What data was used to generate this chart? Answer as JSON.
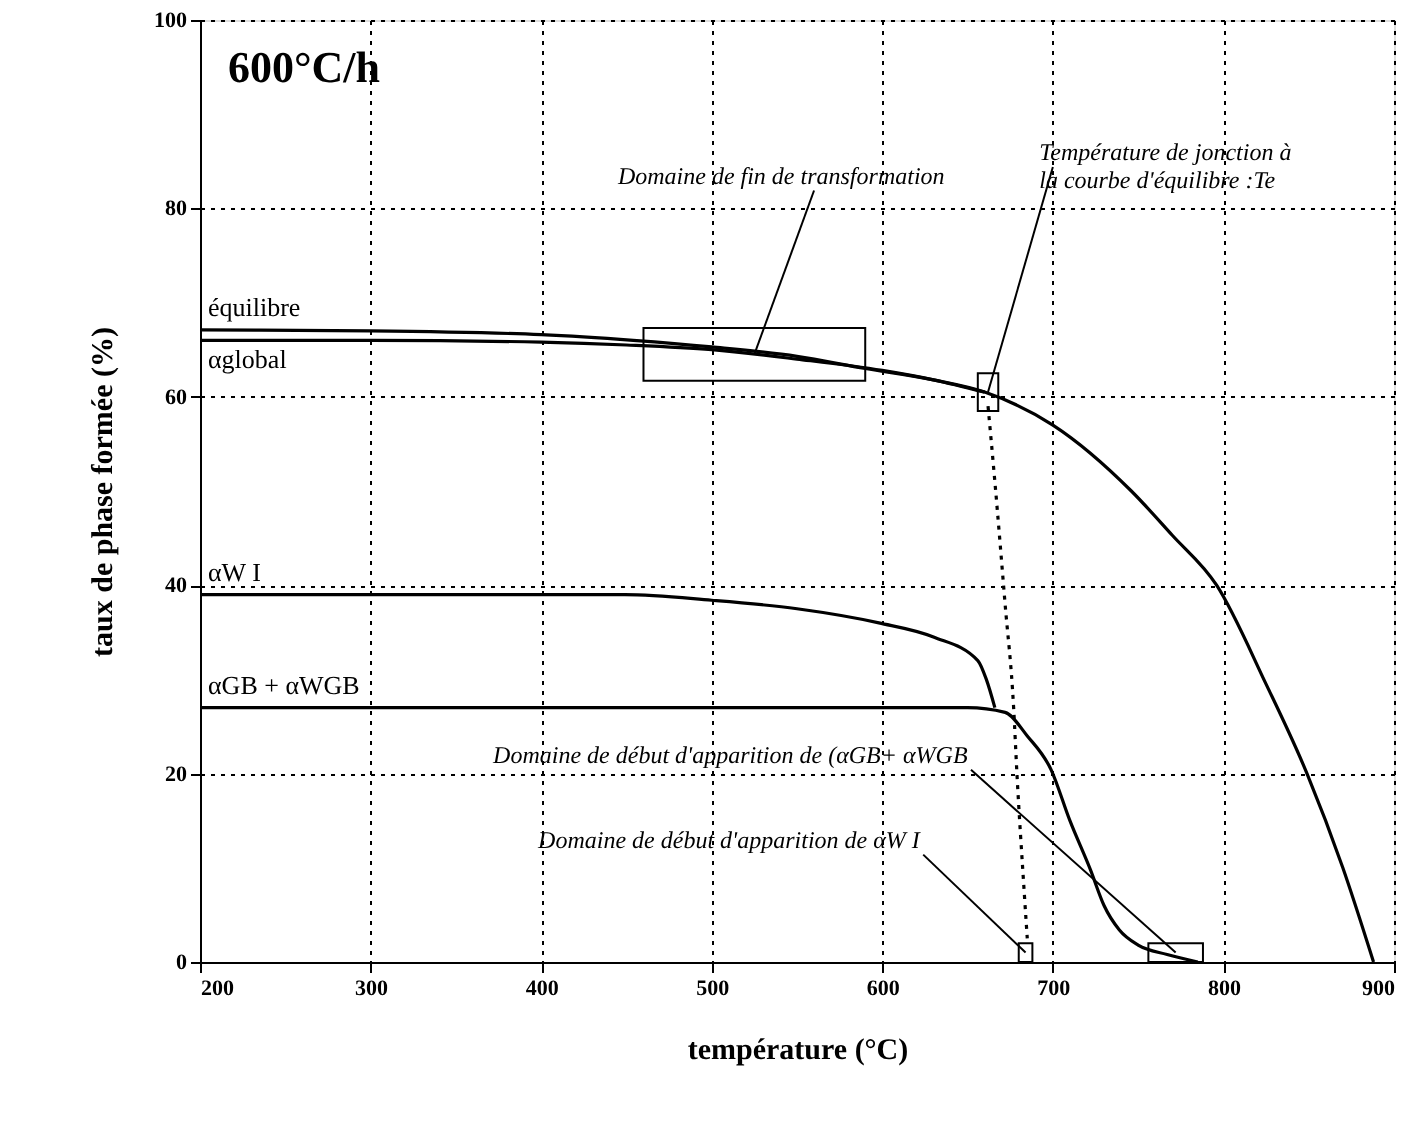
{
  "chart_data": {
    "type": "line",
    "xlabel": "température (°C)",
    "ylabel": "taux de phase formée (%)",
    "xlim": [
      200,
      900
    ],
    "xticks": [
      200,
      300,
      400,
      500,
      600,
      700,
      800,
      900
    ],
    "ylim": [
      0,
      100
    ],
    "yticks": [
      0,
      20,
      40,
      60,
      80,
      100
    ],
    "grid": true,
    "line_style": "solid",
    "marker": "none",
    "series": [
      {
        "name": "équilibre",
        "color": "#000000",
        "x": [
          200,
          300,
          400,
          454,
          500,
          550,
          590,
          630,
          660,
          700,
          746,
          770,
          796,
          825,
          849,
          870,
          888
        ],
        "values": [
          67.1,
          67,
          66.6,
          66,
          65.3,
          64.3,
          63,
          61.8,
          60.5,
          57,
          50,
          45.3,
          40,
          29.5,
          20,
          10,
          0
        ]
      },
      {
        "name": "αglobal",
        "color": "#000000",
        "x": [
          200,
          300,
          400,
          450,
          500,
          550,
          600,
          630,
          660
        ],
        "values": [
          66,
          66,
          65.8,
          65.5,
          65,
          64,
          62.8,
          61.8,
          60.5
        ]
      },
      {
        "name": "αW I",
        "color": "#000000",
        "x": [
          200,
          300,
          400,
          449,
          500,
          550,
          598,
          630,
          656,
          661,
          666
        ],
        "values": [
          39,
          39,
          39,
          39,
          38.4,
          37.5,
          36,
          34.5,
          32,
          30,
          27
        ]
      },
      {
        "name": "αGB + αWGB",
        "color": "#000000",
        "x": [
          200,
          300,
          400,
          500,
          600,
          650,
          672,
          685,
          699,
          710,
          722,
          730,
          739,
          750,
          767,
          785
        ],
        "values": [
          27,
          27,
          27,
          27,
          27,
          27,
          26.5,
          24,
          20.4,
          15,
          9.8,
          6,
          3.4,
          1.8,
          0.8,
          0
        ]
      },
      {
        "color": "#000000",
        "line_style": "dotted",
        "x": [
          662,
          666,
          672,
          677,
          679,
          683,
          685
        ],
        "values": [
          59,
          51,
          38,
          27,
          19.8,
          8,
          2.5
        ]
      }
    ],
    "annotations": [
      "600°C/h",
      {
        "text": "Domaine de fin de transformation",
        "x": 525,
        "y": 64.5
      },
      {
        "text": "Température de jonction à\nla courbe d'équilibre :Te",
        "x": 662,
        "y": 60.5
      },
      {
        "text": "Domaine de début d'apparition de (αGB+ αWGB",
        "x": 772,
        "y": 1
      },
      {
        "text": "Domaine de début d'apparition de αW I",
        "x": 684,
        "y": 1
      }
    ]
  }
}
